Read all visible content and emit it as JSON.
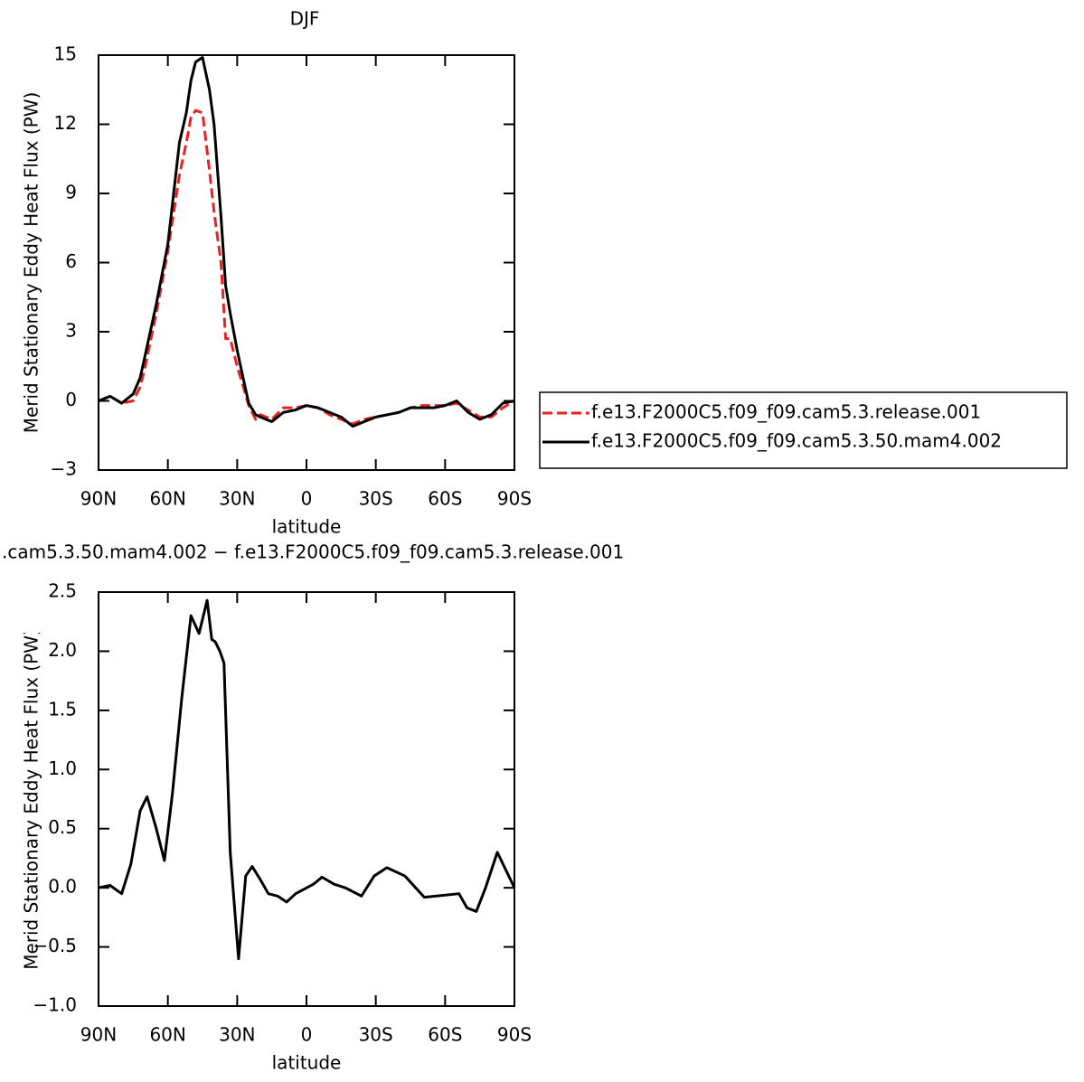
{
  "chart_data": [
    {
      "type": "line",
      "title": "DJF",
      "x_label": "latitude",
      "y_label": "Merid Stationary Eddy Heat Flux (PW)",
      "x": [
        90,
        85,
        80,
        75,
        72,
        70,
        65,
        60,
        55,
        52,
        50,
        48,
        45,
        42,
        40,
        37,
        35,
        33,
        30,
        27,
        25,
        22,
        20,
        15,
        10,
        5,
        0,
        -5,
        -10,
        -15,
        -20,
        -25,
        -30,
        -35,
        -40,
        -45,
        -50,
        -55,
        -60,
        -65,
        -70,
        -75,
        -80,
        -85,
        -90
      ],
      "series": [
        {
          "name": "f.e13.F2000C5.f09_f09.cam5.3.release.001",
          "color": "#e8231f",
          "dashed": true,
          "values": [
            0,
            0.2,
            -0.1,
            0.0,
            0.6,
            1.4,
            3.8,
            6.5,
            9.8,
            11.2,
            12.3,
            12.6,
            12.5,
            10.0,
            8.2,
            6.0,
            2.7,
            2.7,
            1.5,
            0.5,
            -0.2,
            -0.8,
            -0.6,
            -0.8,
            -0.3,
            -0.3,
            -0.2,
            -0.3,
            -0.6,
            -0.8,
            -1.0,
            -0.8,
            -0.7,
            -0.6,
            -0.5,
            -0.3,
            -0.2,
            -0.2,
            -0.2,
            -0.1,
            -0.4,
            -0.7,
            -0.7,
            -0.3,
            0
          ]
        },
        {
          "name": "f.e13.F2000C5.f09_f09.cam5.3.50.mam4.002",
          "color": "#000000",
          "dashed": false,
          "values": [
            0,
            0.2,
            -0.1,
            0.3,
            1.0,
            1.9,
            4.2,
            6.8,
            11.2,
            12.5,
            13.9,
            14.7,
            14.9,
            13.5,
            12.0,
            8.0,
            5.0,
            3.8,
            2.2,
            0.8,
            -0.1,
            -0.6,
            -0.7,
            -0.9,
            -0.5,
            -0.4,
            -0.2,
            -0.3,
            -0.5,
            -0.7,
            -1.1,
            -0.9,
            -0.7,
            -0.6,
            -0.5,
            -0.3,
            -0.3,
            -0.3,
            -0.2,
            0.0,
            -0.5,
            -0.8,
            -0.6,
            -0.1,
            0.0
          ]
        }
      ],
      "xlim": [
        90,
        -90
      ],
      "xticks": [
        {
          "value": 90,
          "label": "90N"
        },
        {
          "value": 60,
          "label": "60N"
        },
        {
          "value": 30,
          "label": "30N"
        },
        0,
        {
          "value": -30,
          "label": "30S"
        },
        {
          "value": -60,
          "label": "60S"
        },
        {
          "value": -90,
          "label": "90S"
        }
      ],
      "ylim": [
        -3,
        15
      ],
      "yticks": [
        {
          "value": -3,
          "label": "−3"
        },
        0,
        3,
        6,
        9,
        12,
        15
      ],
      "legend": "right"
    },
    {
      "type": "line",
      "title": ".cam5.3.50.mam4.002 − f.e13.F2000C5.f09_f09.cam5.3.release.001",
      "x_label": "latitude",
      "y_label": "Merid Stationary Eddy Heat Flux (PW)",
      "x": [
        90,
        85,
        80,
        76,
        72,
        69,
        65,
        61.5,
        58,
        54,
        50,
        46.5,
        43,
        41,
        39.5,
        37.5,
        35.7,
        33,
        29.4,
        26.3,
        23.5,
        20,
        16.5,
        12.5,
        8.6,
        4.7,
        -3,
        -6.7,
        -12,
        -16.8,
        -23.8,
        -29.3,
        -34.8,
        -42.6,
        -51,
        -66,
        -69.5,
        -73.5,
        -77.5,
        -82.6,
        -90
      ],
      "series": [
        {
          "name": null,
          "color": "#000000",
          "dashed": false,
          "values": [
            0,
            0.02,
            -0.05,
            0.2,
            0.65,
            0.77,
            0.5,
            0.23,
            0.8,
            1.6,
            2.3,
            2.15,
            2.43,
            2.1,
            2.08,
            2.0,
            1.9,
            0.3,
            -0.6,
            0.1,
            0.18,
            0.07,
            -0.05,
            -0.07,
            -0.12,
            -0.05,
            0.03,
            0.09,
            0.03,
            0.0,
            -0.07,
            0.1,
            0.17,
            0.1,
            -0.08,
            -0.05,
            -0.17,
            -0.2,
            0.0,
            0.3,
            0.0
          ]
        }
      ],
      "xlim": [
        90,
        -90
      ],
      "xticks": [
        {
          "value": 90,
          "label": "90N"
        },
        {
          "value": 60,
          "label": "60N"
        },
        {
          "value": 30,
          "label": "30N"
        },
        0,
        {
          "value": -30,
          "label": "30S"
        },
        {
          "value": -60,
          "label": "60S"
        },
        {
          "value": -90,
          "label": "90S"
        }
      ],
      "ylim": [
        -1.0,
        2.5
      ],
      "yticks": [
        {
          "value": -1.0,
          "label": "−1.0"
        },
        {
          "value": -0.5,
          "label": "−0.5"
        },
        {
          "value": 0.0,
          "label": "0.0"
        },
        0.5,
        {
          "value": 1.0,
          "label": "1.0"
        },
        1.5,
        {
          "value": 2.0,
          "label": "2.0"
        },
        2.5
      ]
    }
  ]
}
